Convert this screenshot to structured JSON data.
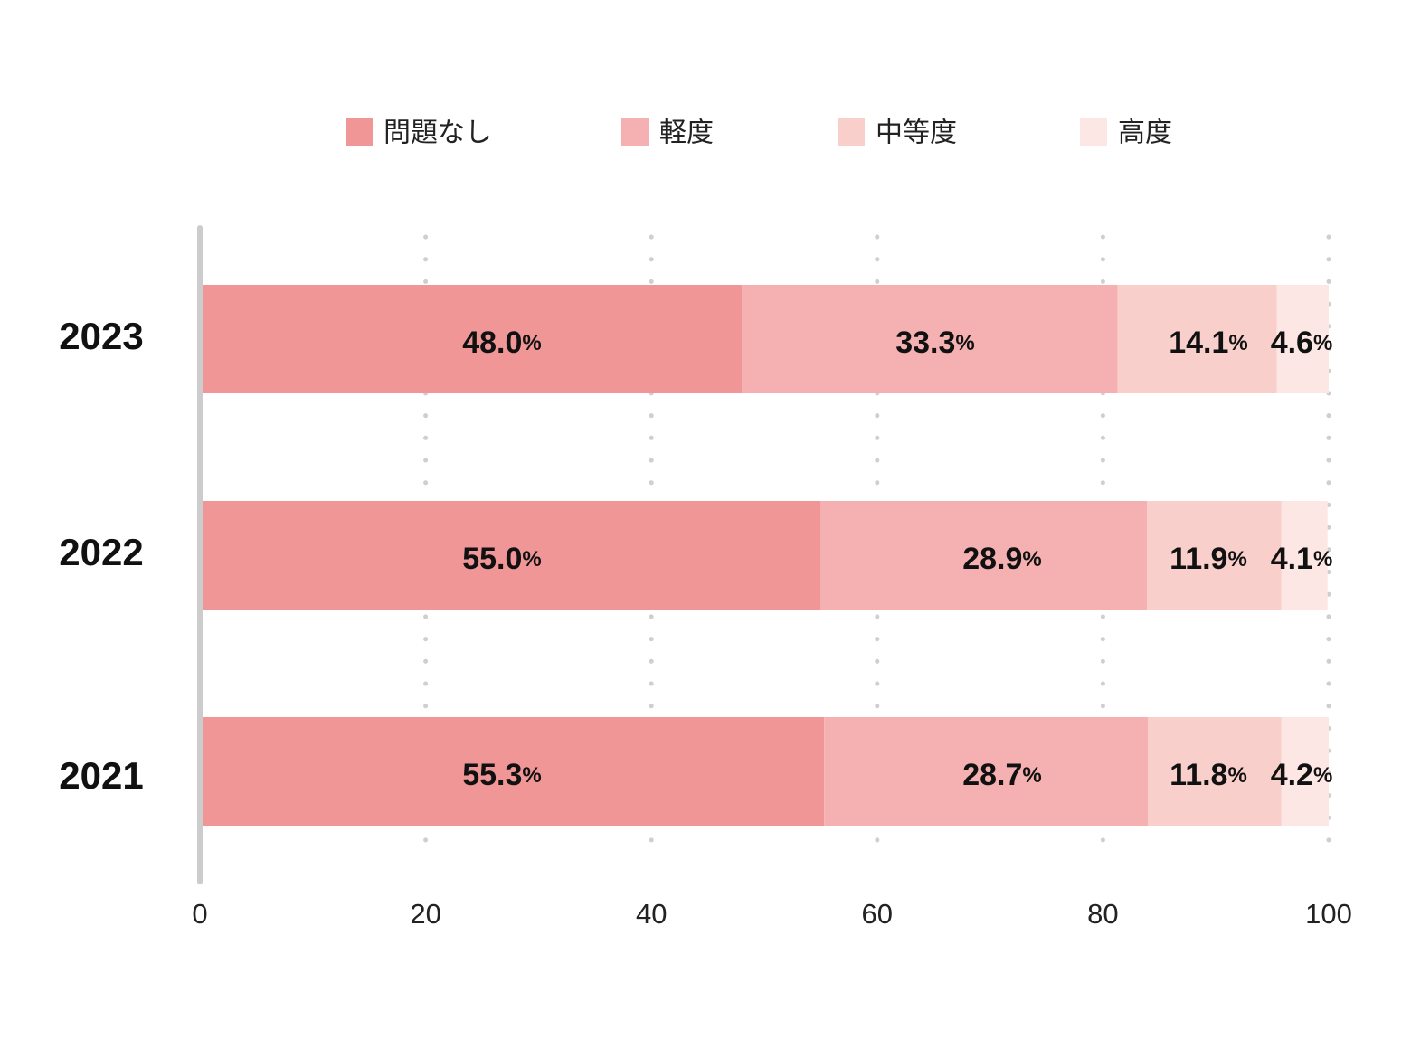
{
  "chart_data": {
    "type": "bar",
    "orientation": "horizontal",
    "stacked": true,
    "categories": [
      "2023",
      "2022",
      "2021"
    ],
    "series": [
      {
        "name": "問題なし",
        "color": "#f09696",
        "values": [
          48.0,
          55.0,
          55.3
        ]
      },
      {
        "name": "軽度",
        "color": "#f5b1b1",
        "values": [
          33.3,
          28.9,
          28.7
        ]
      },
      {
        "name": "中等度",
        "color": "#f8cfcb",
        "values": [
          14.1,
          11.9,
          11.8
        ]
      },
      {
        "name": "高度",
        "color": "#fde7e5",
        "values": [
          4.6,
          4.1,
          4.2
        ]
      }
    ],
    "data_labels": [
      [
        "48.0",
        "33.3",
        "14.1",
        "4.6"
      ],
      [
        "55.0",
        "28.9",
        "11.9",
        "4.1"
      ],
      [
        "55.3",
        "28.7",
        "11.8",
        "4.2"
      ]
    ],
    "value_unit": "%",
    "xlim": [
      0,
      100
    ],
    "xticks": [
      0,
      20,
      40,
      60,
      80,
      100
    ],
    "xtick_labels": [
      "0",
      "20",
      "40",
      "60",
      "80",
      "100"
    ],
    "grid": "vertical dotted",
    "legend_position": "top-center",
    "title": "",
    "xlabel": "",
    "ylabel": ""
  }
}
